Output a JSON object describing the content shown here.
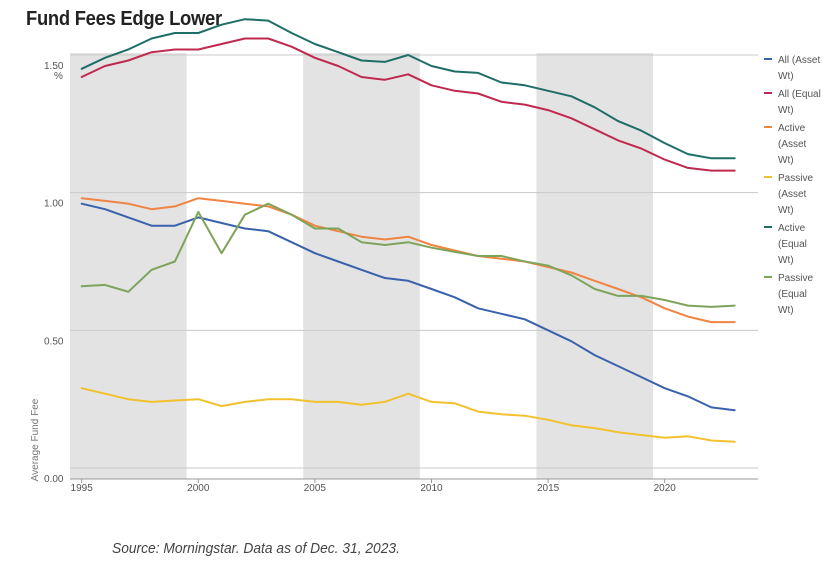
{
  "title": "Fund Fees Edge Lower",
  "source": "Source: Morningstar. Data as of Dec. 31, 2023.",
  "chart_data": {
    "type": "line",
    "ylabel": "Average Fund Fee",
    "yunit": "%",
    "ylim": [
      0,
      1.5
    ],
    "xlim": [
      1994.5,
      2024
    ],
    "yticks": [
      {
        "v": 1.5,
        "label": "1.50"
      },
      {
        "v": 1.0,
        "label": "1.00"
      },
      {
        "v": 0.5,
        "label": "0.50"
      },
      {
        "v": 0.0,
        "label": "0.00"
      }
    ],
    "xticks": [
      {
        "v": 1995,
        "label": "1995"
      },
      {
        "v": 2000,
        "label": "2000"
      },
      {
        "v": 2005,
        "label": "2005"
      },
      {
        "v": 2010,
        "label": "2010"
      },
      {
        "v": 2015,
        "label": "2015"
      },
      {
        "v": 2020,
        "label": "2020"
      }
    ],
    "shaded_ranges": [
      [
        1994.5,
        1999.5
      ],
      [
        2004.5,
        2009.5
      ],
      [
        2014.5,
        2019.5
      ]
    ],
    "legend_position": "right",
    "x": [
      1995,
      1996,
      1997,
      1998,
      1999,
      2000,
      2001,
      2002,
      2003,
      2004,
      2005,
      2006,
      2007,
      2008,
      2009,
      2010,
      2011,
      2012,
      2013,
      2014,
      2015,
      2016,
      2017,
      2018,
      2019,
      2020,
      2021,
      2022,
      2023
    ],
    "series": [
      {
        "name": "All (Asset Wt)",
        "legend_lines": [
          "All (Asset",
          "Wt)"
        ],
        "color": "#3a62ac",
        "values": [
          0.96,
          0.94,
          0.91,
          0.88,
          0.88,
          0.91,
          0.89,
          0.87,
          0.86,
          0.82,
          0.78,
          0.75,
          0.72,
          0.69,
          0.68,
          0.65,
          0.62,
          0.58,
          0.56,
          0.54,
          0.5,
          0.46,
          0.41,
          0.37,
          0.33,
          0.29,
          0.26,
          0.22,
          0.21
        ]
      },
      {
        "name": "All (Equal Wt)",
        "legend_lines": [
          "All (Equal",
          "Wt)"
        ],
        "color": "#c0294f",
        "values": [
          1.42,
          1.46,
          1.48,
          1.51,
          1.52,
          1.52,
          1.54,
          1.56,
          1.56,
          1.53,
          1.49,
          1.46,
          1.42,
          1.41,
          1.43,
          1.39,
          1.37,
          1.36,
          1.33,
          1.32,
          1.3,
          1.27,
          1.23,
          1.19,
          1.16,
          1.12,
          1.09,
          1.08,
          1.08
        ]
      },
      {
        "name": "Active (Asset Wt)",
        "legend_lines": [
          "Active",
          "(Asset",
          "Wt)"
        ],
        "color": "#f08442",
        "values": [
          0.98,
          0.97,
          0.96,
          0.94,
          0.95,
          0.98,
          0.97,
          0.96,
          0.95,
          0.92,
          0.88,
          0.86,
          0.84,
          0.83,
          0.84,
          0.81,
          0.79,
          0.77,
          0.76,
          0.75,
          0.73,
          0.71,
          0.68,
          0.65,
          0.62,
          0.58,
          0.55,
          0.53,
          0.53
        ]
      },
      {
        "name": "Passive (Asset Wt)",
        "legend_lines": [
          "Passive",
          "(Asset",
          "Wt)"
        ],
        "color": "#f2c12e",
        "values": [
          0.29,
          0.27,
          0.25,
          0.24,
          0.245,
          0.25,
          0.225,
          0.24,
          0.25,
          0.25,
          0.24,
          0.24,
          0.23,
          0.24,
          0.27,
          0.24,
          0.235,
          0.205,
          0.195,
          0.19,
          0.175,
          0.155,
          0.145,
          0.13,
          0.12,
          0.11,
          0.115,
          0.1,
          0.095
        ]
      },
      {
        "name": "Active (Equal Wt)",
        "legend_lines": [
          "Active",
          "(Equal",
          "Wt)"
        ],
        "color": "#1d6e66",
        "values": [
          1.45,
          1.49,
          1.52,
          1.56,
          1.58,
          1.58,
          1.61,
          1.63,
          1.625,
          1.58,
          1.54,
          1.51,
          1.48,
          1.475,
          1.5,
          1.46,
          1.44,
          1.435,
          1.4,
          1.39,
          1.37,
          1.35,
          1.31,
          1.26,
          1.225,
          1.18,
          1.14,
          1.125,
          1.125
        ]
      },
      {
        "name": "Passive (Equal Wt)",
        "legend_lines": [
          "Passive",
          "(Equal",
          "Wt)"
        ],
        "color": "#7ea45b",
        "values": [
          0.66,
          0.665,
          0.64,
          0.72,
          0.75,
          0.93,
          0.78,
          0.92,
          0.96,
          0.92,
          0.87,
          0.87,
          0.82,
          0.81,
          0.82,
          0.8,
          0.785,
          0.77,
          0.77,
          0.75,
          0.735,
          0.7,
          0.65,
          0.625,
          0.625,
          0.61,
          0.59,
          0.585,
          0.59
        ]
      }
    ]
  }
}
